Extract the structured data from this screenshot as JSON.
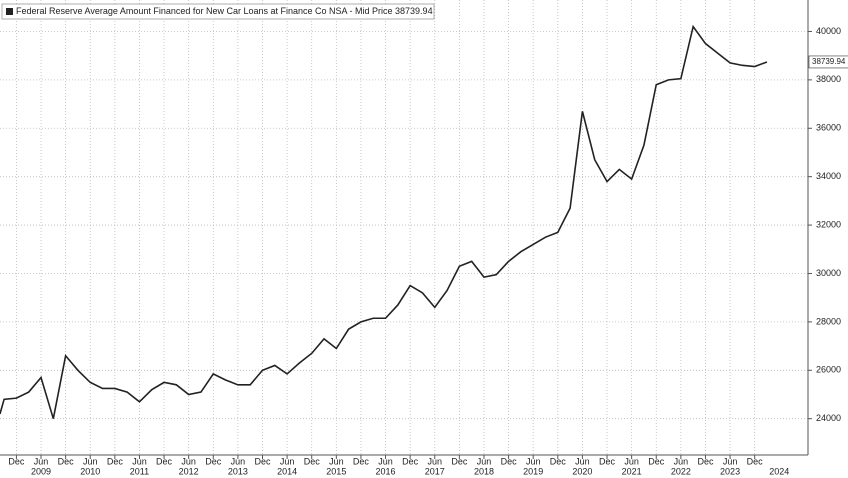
{
  "chart_data": {
    "type": "line",
    "series": [
      {
        "name": "Federal Reserve Average Amount Financed for New Car Loans at Finance Co NSA - Mid Price",
        "color": "#222222",
        "values": [
          24200,
          24800,
          24850,
          25100,
          25700,
          24000,
          26600,
          26000,
          25500,
          25250,
          25250,
          25100,
          24700,
          25200,
          25500,
          25400,
          25000,
          25100,
          25850,
          25600,
          25400,
          25400,
          26000,
          26200,
          25850,
          26300,
          26700,
          27300,
          26900,
          27700,
          28000,
          28150,
          28150,
          28700,
          29500,
          29200,
          28600,
          29300,
          30300,
          30500,
          29850,
          29950,
          30500,
          30900,
          31200,
          31500,
          31700,
          32700,
          36700,
          34700,
          33800,
          34300,
          33900,
          35300,
          37800,
          38000,
          38050,
          40200,
          39500,
          39100,
          38700,
          38600,
          38550,
          38739.94
        ]
      }
    ],
    "x": [
      "2008-08",
      "2008-09",
      "2008-12",
      "2009-03",
      "2009-06",
      "2009-09",
      "2009-12",
      "2010-03",
      "2010-06",
      "2010-09",
      "2010-12",
      "2011-03",
      "2011-06",
      "2011-09",
      "2011-12",
      "2012-03",
      "2012-06",
      "2012-09",
      "2012-12",
      "2013-03",
      "2013-06",
      "2013-09",
      "2013-12",
      "2014-03",
      "2014-06",
      "2014-09",
      "2014-12",
      "2015-03",
      "2015-06",
      "2015-09",
      "2015-12",
      "2016-03",
      "2016-06",
      "2016-09",
      "2016-12",
      "2017-03",
      "2017-06",
      "2017-09",
      "2017-12",
      "2018-03",
      "2018-06",
      "2018-09",
      "2018-12",
      "2019-03",
      "2019-06",
      "2019-09",
      "2019-12",
      "2020-03",
      "2020-06",
      "2020-09",
      "2020-12",
      "2021-03",
      "2021-06",
      "2021-09",
      "2021-12",
      "2022-03",
      "2022-06",
      "2022-09",
      "2022-12",
      "2023-03",
      "2023-06",
      "2023-09",
      "2023-12",
      "2024-03"
    ],
    "xlim": [
      "2008-08",
      "2025-01"
    ],
    "xticks": [
      {
        "value": "2008-12",
        "label": "Dec"
      },
      {
        "value": "2009-06",
        "label": "Jun"
      },
      {
        "value": "2009-12",
        "label": "Dec"
      },
      {
        "value": "2010-06",
        "label": "Jun"
      },
      {
        "value": "2010-12",
        "label": "Dec"
      },
      {
        "value": "2011-06",
        "label": "Jun"
      },
      {
        "value": "2011-12",
        "label": "Dec"
      },
      {
        "value": "2012-06",
        "label": "Jun"
      },
      {
        "value": "2012-12",
        "label": "Dec"
      },
      {
        "value": "2013-06",
        "label": "Jun"
      },
      {
        "value": "2013-12",
        "label": "Dec"
      },
      {
        "value": "2014-06",
        "label": "Jun"
      },
      {
        "value": "2014-12",
        "label": "Dec"
      },
      {
        "value": "2015-06",
        "label": "Jun"
      },
      {
        "value": "2015-12",
        "label": "Dec"
      },
      {
        "value": "2016-06",
        "label": "Jun"
      },
      {
        "value": "2016-12",
        "label": "Dec"
      },
      {
        "value": "2017-06",
        "label": "Jun"
      },
      {
        "value": "2017-12",
        "label": "Dec"
      },
      {
        "value": "2018-06",
        "label": "Jun"
      },
      {
        "value": "2018-12",
        "label": "Dec"
      },
      {
        "value": "2019-06",
        "label": "Jun"
      },
      {
        "value": "2019-12",
        "label": "Dec"
      },
      {
        "value": "2020-06",
        "label": "Jun"
      },
      {
        "value": "2020-12",
        "label": "Dec"
      },
      {
        "value": "2021-06",
        "label": "Jun"
      },
      {
        "value": "2021-12",
        "label": "Dec"
      },
      {
        "value": "2022-06",
        "label": "Jun"
      },
      {
        "value": "2022-12",
        "label": "Dec"
      },
      {
        "value": "2023-06",
        "label": "Jun"
      },
      {
        "value": "2023-12",
        "label": "Dec"
      }
    ],
    "year_labels": [
      {
        "value": "2009-06",
        "label": "2009"
      },
      {
        "value": "2010-06",
        "label": "2010"
      },
      {
        "value": "2011-06",
        "label": "2011"
      },
      {
        "value": "2012-06",
        "label": "2012"
      },
      {
        "value": "2013-06",
        "label": "2013"
      },
      {
        "value": "2014-06",
        "label": "2014"
      },
      {
        "value": "2015-06",
        "label": "2015"
      },
      {
        "value": "2016-06",
        "label": "2016"
      },
      {
        "value": "2017-06",
        "label": "2017"
      },
      {
        "value": "2018-06",
        "label": "2018"
      },
      {
        "value": "2019-06",
        "label": "2019"
      },
      {
        "value": "2020-06",
        "label": "2020"
      },
      {
        "value": "2021-06",
        "label": "2021"
      },
      {
        "value": "2022-06",
        "label": "2022"
      },
      {
        "value": "2023-06",
        "label": "2023"
      },
      {
        "value": "2024-06",
        "label": "2024"
      }
    ],
    "ylim": [
      22500,
      41300
    ],
    "yticks": [
      24000,
      26000,
      28000,
      30000,
      32000,
      34000,
      36000,
      38000,
      40000
    ],
    "grid": true
  }
}
